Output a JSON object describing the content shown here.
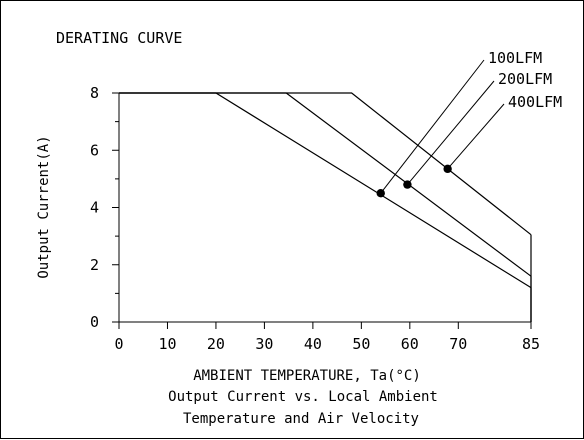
{
  "chart_data": {
    "type": "line",
    "title": "DERATING CURVE",
    "xlabel": "AMBIENT TEMPERATURE, Ta(°C)",
    "ylabel": "Output Current(A)",
    "caption_line1": "Output Current vs. Local Ambient",
    "caption_line2": "Temperature and Air Velocity",
    "xlim": [
      0,
      85
    ],
    "ylim": [
      0,
      8
    ],
    "xticks": [
      0,
      10,
      20,
      30,
      40,
      50,
      60,
      70,
      85
    ],
    "yticks": [
      0,
      2,
      4,
      6,
      8
    ],
    "grid": false,
    "series": [
      {
        "name": "100LFM",
        "x": [
          0,
          20,
          85
        ],
        "y": [
          8,
          8,
          1.2
        ],
        "marker": [
          54,
          4.5
        ]
      },
      {
        "name": "200LFM",
        "x": [
          0,
          34.5,
          85
        ],
        "y": [
          8,
          8,
          1.6
        ],
        "marker": [
          59.5,
          4.8
        ]
      },
      {
        "name": "400LFM",
        "x": [
          0,
          48,
          85
        ],
        "y": [
          8,
          8,
          3.05
        ],
        "marker": [
          67.8,
          5.35
        ]
      }
    ],
    "colors": {
      "line": "#000000",
      "background": "#ffffff"
    }
  }
}
